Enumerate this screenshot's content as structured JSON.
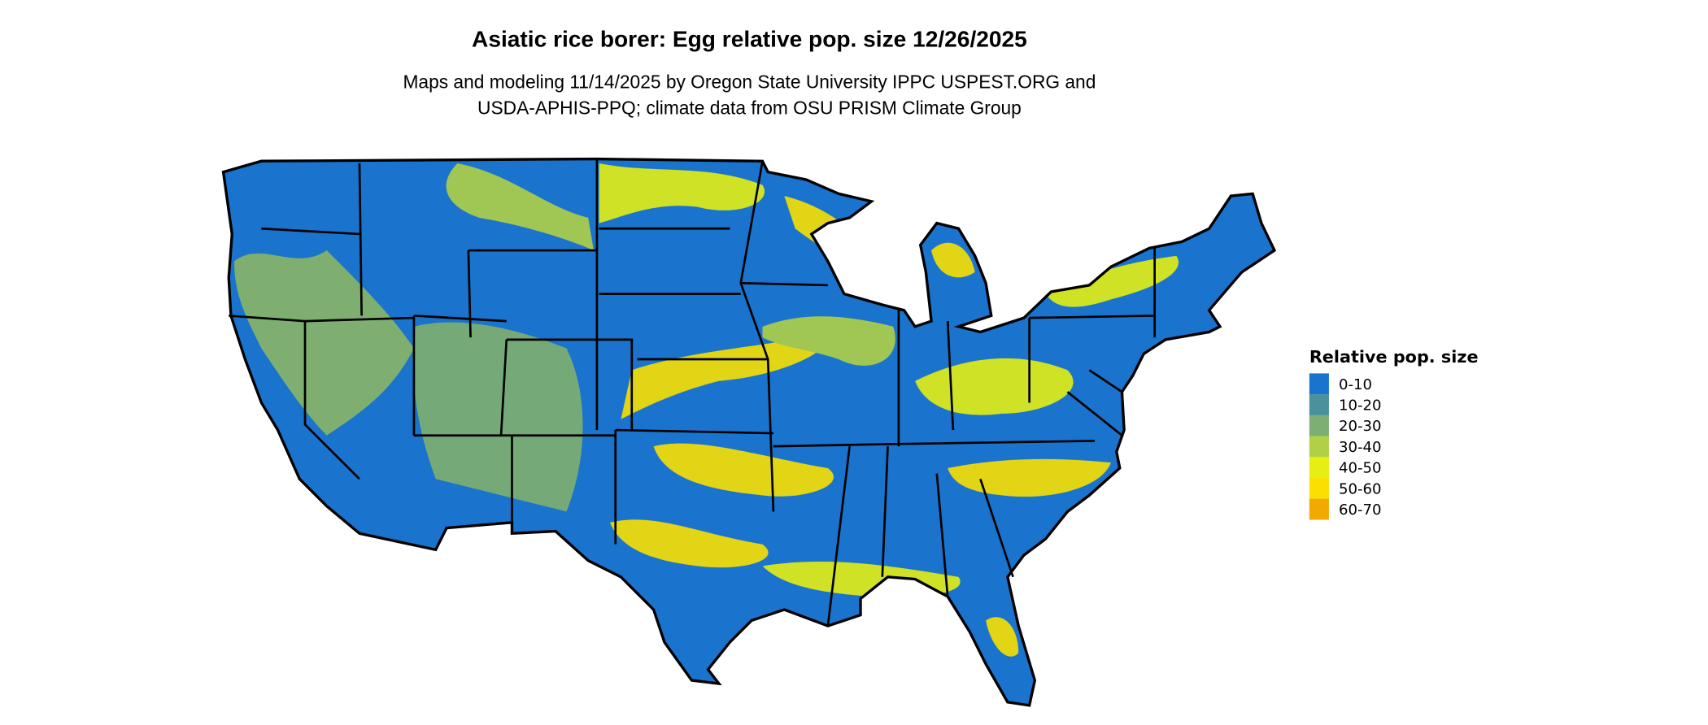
{
  "title": "Asiatic rice borer: Egg relative pop. size 12/26/2025",
  "subtitle_lines": [
    "Maps and modeling 11/14/2025 by Oregon State University IPPC USPEST.ORG and",
    "USDA-APHIS-PPQ; climate data from OSU PRISM Climate Group"
  ],
  "map": {
    "region": "Contiguous United States",
    "base_color": "#1a73cc",
    "border_color": "#000000"
  },
  "legend": {
    "title": "Relative pop. size",
    "items": [
      {
        "label": "0-10",
        "color": "#1a73cc"
      },
      {
        "label": "10-20",
        "color": "#4a919c"
      },
      {
        "label": "20-30",
        "color": "#7daf74"
      },
      {
        "label": "30-40",
        "color": "#b0d046"
      },
      {
        "label": "40-50",
        "color": "#e5ef14"
      },
      {
        "label": "50-60",
        "color": "#f9e000"
      },
      {
        "label": "60-70",
        "color": "#f0aa00"
      }
    ]
  }
}
